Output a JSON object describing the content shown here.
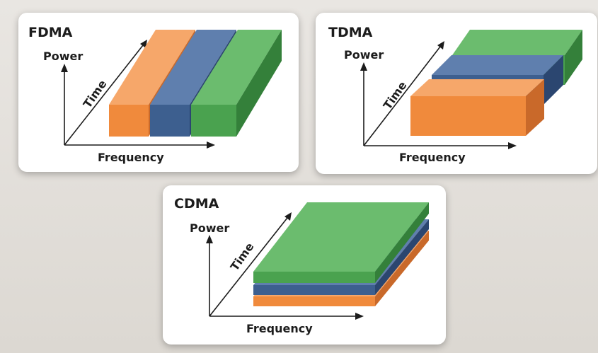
{
  "panels": {
    "fdma": {
      "title": "FDMA",
      "y_label": "Power",
      "z_label": "Time",
      "x_label": "Frequency"
    },
    "tdma": {
      "title": "TDMA",
      "y_label": "Power",
      "z_label": "Time",
      "x_label": "Frequency"
    },
    "cdma": {
      "title": "CDMA",
      "y_label": "Power",
      "z_label": "Time",
      "x_label": "Frequency"
    }
  },
  "colors": {
    "orange": "#f08a3c",
    "blue": "#3d5f8f",
    "green": "#4aa24f"
  }
}
